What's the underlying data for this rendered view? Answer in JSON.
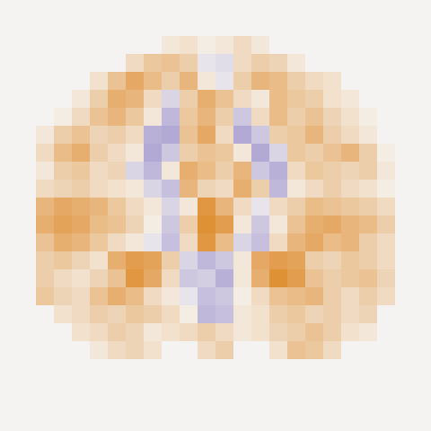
{
  "chart_data": {
    "type": "heatmap",
    "clim": [
      -1,
      1
    ],
    "tick_labels": false,
    "cells": [
      [
        null,
        null,
        null,
        null,
        null,
        null,
        null,
        0.1,
        0.15,
        0.05,
        0.1,
        0.2,
        0.1,
        null,
        null,
        null,
        null,
        null,
        null,
        null
      ],
      [
        null,
        null,
        null,
        null,
        null,
        0.2,
        0.35,
        0.4,
        0.3,
        -0.1,
        -0.15,
        0.2,
        0.3,
        0.25,
        0.1,
        null,
        null,
        null,
        null,
        null
      ],
      [
        null,
        null,
        null,
        0.15,
        0.4,
        0.6,
        0.45,
        0.3,
        0.5,
        0.1,
        -0.1,
        0.3,
        0.5,
        0.45,
        0.3,
        0.2,
        0.15,
        null,
        null,
        null
      ],
      [
        null,
        null,
        0.1,
        0.3,
        0.55,
        0.5,
        0.2,
        -0.2,
        0.3,
        0.55,
        0.4,
        0.2,
        0.1,
        0.45,
        0.35,
        0.3,
        0.15,
        0.1,
        null,
        null
      ],
      [
        null,
        0.05,
        0.2,
        0.4,
        0.5,
        0.35,
        0.1,
        -0.4,
        0.35,
        0.5,
        0.3,
        -0.3,
        0.2,
        0.45,
        0.3,
        0.4,
        0.25,
        0.15,
        0.05,
        null
      ],
      [
        0.1,
        0.3,
        0.4,
        0.25,
        0.3,
        0.2,
        -0.45,
        -0.5,
        0.4,
        0.6,
        0.2,
        -0.5,
        -0.3,
        0.3,
        0.35,
        0.5,
        0.3,
        0.2,
        0.1,
        null
      ],
      [
        0.2,
        0.45,
        0.55,
        0.3,
        0.2,
        0.1,
        -0.5,
        -0.3,
        0.3,
        0.4,
        0.35,
        0.1,
        -0.5,
        -0.2,
        0.35,
        0.3,
        0.4,
        0.5,
        0.3,
        0.05
      ],
      [
        0.1,
        0.3,
        0.35,
        0.2,
        0.25,
        -0.2,
        -0.4,
        0.1,
        0.55,
        0.45,
        0.3,
        0.5,
        -0.3,
        -0.45,
        0.2,
        0.35,
        0.3,
        0.25,
        0.3,
        0.1
      ],
      [
        0.2,
        0.25,
        0.3,
        0.2,
        0.15,
        0.1,
        -0.2,
        -0.35,
        0.5,
        0.25,
        0.2,
        0.55,
        0.3,
        -0.4,
        0.1,
        0.2,
        0.3,
        0.2,
        0.15,
        0.05
      ],
      [
        0.5,
        0.6,
        0.55,
        0.5,
        0.35,
        0.2,
        0.1,
        -0.2,
        0.1,
        0.75,
        0.5,
        0.2,
        -0.1,
        0.2,
        0.3,
        0.45,
        0.4,
        0.35,
        0.3,
        0.2
      ],
      [
        0.55,
        0.65,
        0.6,
        0.45,
        0.4,
        0.25,
        0.05,
        -0.3,
        0.3,
        0.8,
        0.7,
        0.1,
        -0.3,
        0.1,
        0.4,
        0.55,
        0.6,
        0.5,
        0.45,
        0.3
      ],
      [
        0.4,
        0.55,
        0.5,
        0.35,
        0.2,
        0.1,
        -0.1,
        -0.35,
        0.2,
        0.75,
        0.45,
        -0.2,
        -0.35,
        0.2,
        0.5,
        0.6,
        0.45,
        0.5,
        0.3,
        0.2
      ],
      [
        0.3,
        0.35,
        0.25,
        0.15,
        0.55,
        0.7,
        0.65,
        0.3,
        -0.2,
        -0.4,
        -0.3,
        0.1,
        0.6,
        0.7,
        0.65,
        0.3,
        0.25,
        0.35,
        0.3,
        0.2
      ],
      [
        0.3,
        0.2,
        0.15,
        0.25,
        0.4,
        0.75,
        0.6,
        0.2,
        -0.3,
        -0.25,
        -0.45,
        0.1,
        0.55,
        0.8,
        0.7,
        0.4,
        0.3,
        0.35,
        0.4,
        0.25
      ],
      [
        0.35,
        0.25,
        0.2,
        0.4,
        0.55,
        0.45,
        0.2,
        0.1,
        -0.1,
        -0.35,
        -0.3,
        0.05,
        0.2,
        0.4,
        0.45,
        0.5,
        0.3,
        0.2,
        0.3,
        0.2
      ],
      [
        null,
        0.15,
        0.2,
        0.3,
        0.25,
        0.35,
        0.3,
        0.2,
        0.05,
        -0.4,
        -0.35,
        0.1,
        0.15,
        0.3,
        0.35,
        0.25,
        0.3,
        0.2,
        0.25,
        null
      ],
      [
        null,
        null,
        0.15,
        0.2,
        0.3,
        0.25,
        0.1,
        0.15,
        0.2,
        0.3,
        0.2,
        0.1,
        0.15,
        0.25,
        0.3,
        0.4,
        0.3,
        0.15,
        0.1,
        null
      ],
      [
        null,
        null,
        null,
        0.1,
        0.2,
        0.25,
        0.15,
        null,
        null,
        0.2,
        0.3,
        null,
        null,
        0.15,
        0.4,
        0.35,
        0.2,
        null,
        null,
        null
      ]
    ]
  }
}
